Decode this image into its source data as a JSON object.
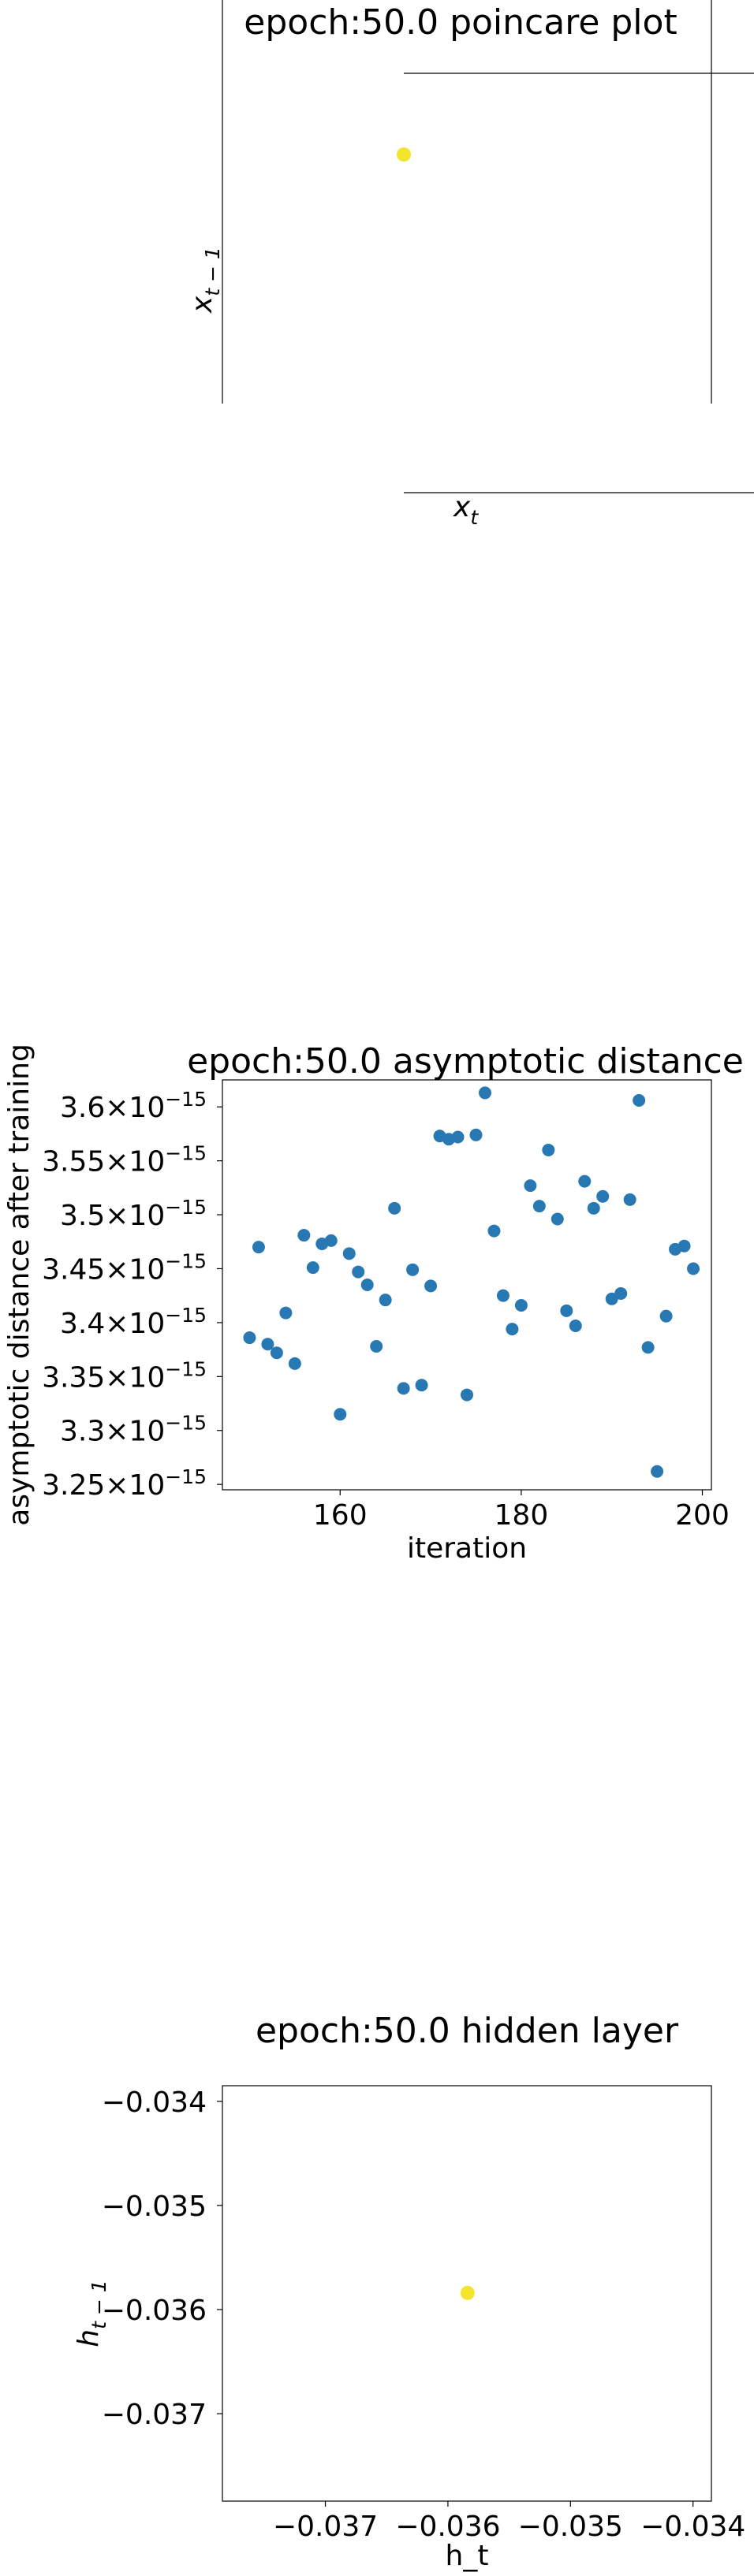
{
  "charts": [
    {
      "title": "epoch:50.0 poincare plot",
      "xlabel": "x_t",
      "ylabel": "x_{t-1}",
      "point_color": "#f3e52b"
    },
    {
      "title": "epoch:50.0 asymptotic distance",
      "xlabel": "iteration",
      "ylabel": "asymptotic distance after training",
      "point_color": "#2878b4"
    },
    {
      "title": "epoch:50.0 hidden layer",
      "xlabel": "h_t",
      "ylabel": "h_{t-1}",
      "point_color": "#f3e52b"
    }
  ],
  "chart_data": [
    {
      "type": "scatter",
      "title": "epoch:50.0 poincare plot",
      "xlabel": "x_t",
      "ylabel": "x_{t-1}",
      "points": [
        [
          0,
          0
        ]
      ],
      "ticks_visible": false
    },
    {
      "type": "scatter",
      "title": "epoch:50.0 asymptotic distance",
      "xlabel": "iteration",
      "ylabel": "asymptotic distance after training",
      "xlim": [
        147,
        201
      ],
      "ylim": [
        3.245e-15,
        3.625e-15
      ],
      "xticks": [
        160,
        180,
        200
      ],
      "yticks": [
        3.25e-15,
        3.3e-15,
        3.35e-15,
        3.4e-15,
        3.45e-15,
        3.5e-15,
        3.55e-15,
        3.6e-15
      ],
      "ytick_mantissas": [
        "3.25",
        "3.3",
        "3.35",
        "3.4",
        "3.45",
        "3.5",
        "3.55",
        "3.6"
      ],
      "ytick_base": "10",
      "ytick_exponent": "−15",
      "x": [
        150,
        151,
        152,
        153,
        154,
        155,
        156,
        157,
        158,
        159,
        160,
        161,
        162,
        163,
        164,
        165,
        166,
        167,
        168,
        169,
        170,
        171,
        172,
        173,
        174,
        175,
        176,
        177,
        178,
        179,
        180,
        181,
        182,
        183,
        184,
        185,
        186,
        187,
        188,
        189,
        190,
        191,
        192,
        193,
        194,
        195,
        196,
        197,
        198,
        199
      ],
      "y": [
        3.386e-15,
        3.47e-15,
        3.38e-15,
        3.372e-15,
        3.409e-15,
        3.362e-15,
        3.481e-15,
        3.451e-15,
        3.473e-15,
        3.476e-15,
        3.315e-15,
        3.464e-15,
        3.447e-15,
        3.435e-15,
        3.378e-15,
        3.421e-15,
        3.506e-15,
        3.339e-15,
        3.449e-15,
        3.342e-15,
        3.434e-15,
        3.573e-15,
        3.57e-15,
        3.572e-15,
        3.333e-15,
        3.574e-15,
        3.613e-15,
        3.485e-15,
        3.425e-15,
        3.394e-15,
        3.416e-15,
        3.527e-15,
        3.508e-15,
        3.56e-15,
        3.496e-15,
        3.411e-15,
        3.397e-15,
        3.531e-15,
        3.506e-15,
        3.517e-15,
        3.422e-15,
        3.427e-15,
        3.514e-15,
        3.606e-15,
        3.377e-15,
        3.262e-15,
        3.406e-15,
        3.468e-15,
        3.471e-15,
        3.45e-15
      ]
    },
    {
      "type": "scatter",
      "title": "epoch:50.0 hidden layer",
      "xlabel": "h_t",
      "ylabel": "h_{t-1}",
      "xlim": [
        -0.03784,
        -0.03385
      ],
      "ylim": [
        -0.03784,
        -0.03385
      ],
      "xticks": [
        -0.037,
        -0.036,
        -0.035,
        -0.034
      ],
      "xtick_labels": [
        "−0.037",
        "−0.036",
        "−0.035",
        "−0.034"
      ],
      "yticks": [
        -0.037,
        -0.036,
        -0.035,
        -0.034
      ],
      "ytick_labels": [
        "−0.037",
        "−0.036",
        "−0.035",
        "−0.034"
      ],
      "points": [
        [
          -0.03584,
          -0.03584
        ]
      ]
    }
  ]
}
